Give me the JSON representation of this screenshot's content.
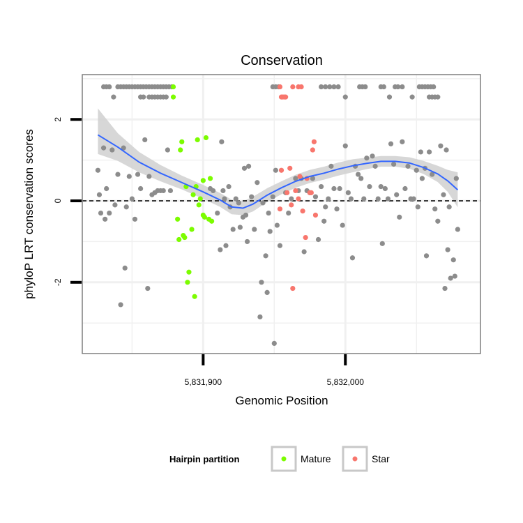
{
  "chart_data": {
    "type": "scatter",
    "title": "Conservation",
    "xlabel": "Genomic Position",
    "ylabel": "phyloP LRT conservation scores",
    "xlim": [
      5831815,
      5832095
    ],
    "ylim": [
      -3.75,
      3.1
    ],
    "x_ticks": [
      5831900,
      5832000
    ],
    "x_tick_labels": [
      "5,831,900",
      "5,832,000"
    ],
    "y_ticks": [
      -2,
      0,
      2
    ],
    "y_tick_labels": [
      "-2",
      "0",
      "2"
    ],
    "grid": true,
    "reference_line": {
      "y": 0,
      "style": "dashed"
    },
    "legend": {
      "title": "Hairpin partition",
      "position": "bottom",
      "entries": [
        {
          "label": "Mature",
          "color": "#7CFC00"
        },
        {
          "label": "Star",
          "color": "#F8766D"
        }
      ]
    },
    "colors": {
      "Other": "#8c8c8c",
      "Mature": "#7CFC00",
      "Star": "#F8766D",
      "smooth": "#3366FF",
      "band": "#d0d0d0"
    },
    "series": [
      {
        "name": "Other",
        "points": [
          [
            5831826,
            0.75
          ],
          [
            5831827,
            0.15
          ],
          [
            5831828,
            -0.3
          ],
          [
            5831830,
            1.3
          ],
          [
            5831831,
            -0.45
          ],
          [
            5831832,
            0.3
          ],
          [
            5831834,
            -0.3
          ],
          [
            5831836,
            1.25
          ],
          [
            5831838,
            -0.1
          ],
          [
            5831840,
            0.65
          ],
          [
            5831842,
            -2.55
          ],
          [
            5831844,
            1.3
          ],
          [
            5831845,
            -1.65
          ],
          [
            5831846,
            -0.15
          ],
          [
            5831848,
            0.6
          ],
          [
            5831850,
            0.05
          ],
          [
            5831852,
            -0.45
          ],
          [
            5831854,
            0.65
          ],
          [
            5831856,
            0.3
          ],
          [
            5831859,
            1.5
          ],
          [
            5831861,
            -2.15
          ],
          [
            5831862,
            0.6
          ],
          [
            5831864,
            0.15
          ],
          [
            5831866,
            0.2
          ],
          [
            5831868,
            0.25
          ],
          [
            5831870,
            0.25
          ],
          [
            5831872,
            0.25
          ],
          [
            5831875,
            1.25
          ],
          [
            5831877,
            0.25
          ],
          [
            5831905,
            0.3
          ],
          [
            5831907,
            0.25
          ],
          [
            5831910,
            -0.3
          ],
          [
            5831912,
            -1.2
          ],
          [
            5831913,
            1.45
          ],
          [
            5831914,
            0.25
          ],
          [
            5831915,
            0.05
          ],
          [
            5831916,
            -1.1
          ],
          [
            5831918,
            0.35
          ],
          [
            5831919,
            -0.15
          ],
          [
            5831921,
            -0.7
          ],
          [
            5831923,
            0.05
          ],
          [
            5831925,
            -0.05
          ],
          [
            5831926,
            -0.65
          ],
          [
            5831928,
            -0.4
          ],
          [
            5831929,
            0.8
          ],
          [
            5831930,
            -0.35
          ],
          [
            5831931,
            -1.0
          ],
          [
            5831932,
            0.85
          ],
          [
            5831934,
            0.1
          ],
          [
            5831936,
            -0.7
          ],
          [
            5831938,
            0.45
          ],
          [
            5831940,
            -2.85
          ],
          [
            5831941,
            -2.0
          ],
          [
            5831942,
            -0.05
          ],
          [
            5831944,
            -1.35
          ],
          [
            5831945,
            -2.25
          ],
          [
            5831946,
            -0.3
          ],
          [
            5831947,
            -0.75
          ],
          [
            5831949,
            0.1
          ],
          [
            5831950,
            -3.5
          ],
          [
            5831951,
            0.75
          ],
          [
            5831952,
            -0.6
          ],
          [
            5831954,
            -1.1
          ],
          [
            5831958,
            0.2
          ],
          [
            5831960,
            -0.3
          ],
          [
            5831962,
            0.05
          ],
          [
            5831965,
            0.55
          ],
          [
            5831967,
            0.25
          ],
          [
            5831969,
            0.55
          ],
          [
            5831971,
            -1.25
          ],
          [
            5831973,
            0.25
          ],
          [
            5831975,
            0.2
          ],
          [
            5831977,
            0.55
          ],
          [
            5831979,
            0.1
          ],
          [
            5831981,
            -0.95
          ],
          [
            5831983,
            0.35
          ],
          [
            5831985,
            -0.5
          ],
          [
            5831986,
            -0.15
          ],
          [
            5831988,
            0.05
          ],
          [
            5831990,
            0.85
          ],
          [
            5831992,
            0.3
          ],
          [
            5831994,
            -0.2
          ],
          [
            5831996,
            0.3
          ],
          [
            5831998,
            -0.6
          ],
          [
            5832000,
            1.35
          ],
          [
            5832002,
            0.2
          ],
          [
            5832004,
            0.05
          ],
          [
            5832005,
            -1.4
          ],
          [
            5832007,
            0.85
          ],
          [
            5832009,
            0.65
          ],
          [
            5832011,
            0.55
          ],
          [
            5832013,
            0.05
          ],
          [
            5832015,
            1.05
          ],
          [
            5832017,
            0.35
          ],
          [
            5832019,
            1.1
          ],
          [
            5832021,
            0.85
          ],
          [
            5832023,
            0.05
          ],
          [
            5832025,
            0.35
          ],
          [
            5832026,
            -1.05
          ],
          [
            5832028,
            0.3
          ],
          [
            5832030,
            0.05
          ],
          [
            5832032,
            1.4
          ],
          [
            5832034,
            0.9
          ],
          [
            5832036,
            0.15
          ],
          [
            5832038,
            -0.4
          ],
          [
            5832040,
            1.45
          ],
          [
            5832042,
            0.3
          ],
          [
            5832044,
            0.85
          ],
          [
            5832046,
            0.05
          ],
          [
            5832048,
            0.05
          ],
          [
            5832050,
            0.75
          ],
          [
            5832051,
            -0.15
          ],
          [
            5832053,
            1.2
          ],
          [
            5832054,
            0.55
          ],
          [
            5832056,
            0.8
          ],
          [
            5832057,
            -1.35
          ],
          [
            5832059,
            1.2
          ],
          [
            5832061,
            0.65
          ],
          [
            5832063,
            -0.2
          ],
          [
            5832065,
            -0.5
          ],
          [
            5832067,
            1.35
          ],
          [
            5832069,
            0.15
          ],
          [
            5832070,
            -2.15
          ],
          [
            5832071,
            1.25
          ],
          [
            5832072,
            -1.2
          ],
          [
            5832073,
            -0.15
          ],
          [
            5832074,
            -1.9
          ],
          [
            5832076,
            -1.45
          ],
          [
            5832077,
            -1.85
          ],
          [
            5832078,
            0.55
          ],
          [
            5832079,
            -0.7
          ]
        ]
      },
      {
        "name": "Other (capped at top)",
        "points": [
          [
            5831830,
            2.8
          ],
          [
            5831832,
            2.8
          ],
          [
            5831834,
            2.8
          ],
          [
            5831837,
            2.55
          ],
          [
            5831840,
            2.8
          ],
          [
            5831842,
            2.8
          ],
          [
            5831844,
            2.8
          ],
          [
            5831846,
            2.8
          ],
          [
            5831848,
            2.8
          ],
          [
            5831850,
            2.8
          ],
          [
            5831852,
            2.8
          ],
          [
            5831854,
            2.8
          ],
          [
            5831856,
            2.8
          ],
          [
            5831858,
            2.8
          ],
          [
            5831860,
            2.8
          ],
          [
            5831862,
            2.8
          ],
          [
            5831864,
            2.8
          ],
          [
            5831866,
            2.8
          ],
          [
            5831868,
            2.8
          ],
          [
            5831870,
            2.8
          ],
          [
            5831872,
            2.8
          ],
          [
            5831874,
            2.8
          ],
          [
            5831876,
            2.8
          ],
          [
            5831878,
            2.8
          ],
          [
            5831856,
            2.55
          ],
          [
            5831858,
            2.55
          ],
          [
            5831862,
            2.55
          ],
          [
            5831864,
            2.55
          ],
          [
            5831866,
            2.55
          ],
          [
            5831868,
            2.55
          ],
          [
            5831870,
            2.55
          ],
          [
            5831872,
            2.55
          ],
          [
            5831874,
            2.55
          ],
          [
            5831949,
            2.8
          ],
          [
            5831951,
            2.8
          ],
          [
            5831953,
            2.8
          ],
          [
            5831983,
            2.8
          ],
          [
            5831986,
            2.8
          ],
          [
            5831989,
            2.8
          ],
          [
            5831992,
            2.8
          ],
          [
            5831995,
            2.8
          ],
          [
            5832000,
            2.55
          ],
          [
            5832010,
            2.8
          ],
          [
            5832012,
            2.8
          ],
          [
            5832014,
            2.8
          ],
          [
            5832025,
            2.8
          ],
          [
            5832027,
            2.8
          ],
          [
            5832031,
            2.55
          ],
          [
            5832035,
            2.8
          ],
          [
            5832037,
            2.8
          ],
          [
            5832040,
            2.8
          ],
          [
            5832047,
            2.55
          ],
          [
            5832052,
            2.8
          ],
          [
            5832054,
            2.8
          ],
          [
            5832056,
            2.8
          ],
          [
            5832058,
            2.8
          ],
          [
            5832060,
            2.8
          ],
          [
            5832062,
            2.8
          ],
          [
            5832059,
            2.55
          ],
          [
            5832061,
            2.55
          ],
          [
            5832063,
            2.55
          ],
          [
            5832065,
            2.55
          ]
        ]
      },
      {
        "name": "Mature",
        "points": [
          [
            5831879,
            2.8
          ],
          [
            5831879,
            2.55
          ],
          [
            5831882,
            -0.45
          ],
          [
            5831883,
            -0.95
          ],
          [
            5831884,
            1.25
          ],
          [
            5831885,
            1.45
          ],
          [
            5831886,
            -0.85
          ],
          [
            5831887,
            -0.9
          ],
          [
            5831888,
            0.35
          ],
          [
            5831889,
            -2.0
          ],
          [
            5831890,
            -1.75
          ],
          [
            5831892,
            -0.7
          ],
          [
            5831893,
            0.15
          ],
          [
            5831894,
            -2.35
          ],
          [
            5831895,
            0.35
          ],
          [
            5831896,
            1.5
          ],
          [
            5831897,
            -0.1
          ],
          [
            5831898,
            0.05
          ],
          [
            5831900,
            0.5
          ],
          [
            5831900,
            -0.35
          ],
          [
            5831901,
            -0.4
          ],
          [
            5831902,
            1.55
          ],
          [
            5831904,
            -0.45
          ],
          [
            5831905,
            0.55
          ],
          [
            5831906,
            -0.5
          ]
        ]
      },
      {
        "name": "Star",
        "points": [
          [
            5831954,
            2.8
          ],
          [
            5831955,
            2.55
          ],
          [
            5831956,
            2.55
          ],
          [
            5831957,
            2.55
          ],
          [
            5831958,
            2.55
          ],
          [
            5831963,
            2.8
          ],
          [
            5831967,
            2.8
          ],
          [
            5831969,
            2.8
          ],
          [
            5831954,
            -0.2
          ],
          [
            5831955,
            0.75
          ],
          [
            5831959,
            0.2
          ],
          [
            5831961,
            0.8
          ],
          [
            5831962,
            -0.1
          ],
          [
            5831963,
            -2.15
          ],
          [
            5831965,
            0.25
          ],
          [
            5831967,
            0.05
          ],
          [
            5831968,
            0.6
          ],
          [
            5831970,
            -0.25
          ],
          [
            5831972,
            -0.9
          ],
          [
            5831973,
            0.55
          ],
          [
            5831975,
            0.2
          ],
          [
            5831976,
            0.2
          ],
          [
            5831977,
            1.25
          ],
          [
            5831978,
            1.45
          ],
          [
            5831979,
            -0.35
          ]
        ]
      }
    ],
    "smooth": {
      "x": [
        5831826,
        5831840,
        5831855,
        5831870,
        5831885,
        5831900,
        5831912,
        5831920,
        5831928,
        5831935,
        5831945,
        5831955,
        5831965,
        5831975,
        5831985,
        5831995,
        5832005,
        5832015,
        5832025,
        5832035,
        5832045,
        5832055,
        5832065,
        5832072,
        5832079
      ],
      "y": [
        1.62,
        1.32,
        0.95,
        0.68,
        0.45,
        0.22,
        0.02,
        -0.15,
        -0.18,
        -0.08,
        0.14,
        0.32,
        0.48,
        0.6,
        0.68,
        0.78,
        0.86,
        0.92,
        0.97,
        0.97,
        0.93,
        0.82,
        0.66,
        0.49,
        0.27
      ],
      "lower": [
        1.15,
        0.98,
        0.7,
        0.48,
        0.28,
        0.05,
        -0.15,
        -0.33,
        -0.35,
        -0.26,
        -0.03,
        0.16,
        0.32,
        0.44,
        0.52,
        0.62,
        0.7,
        0.78,
        0.84,
        0.84,
        0.79,
        0.66,
        0.46,
        0.22,
        -0.16
      ],
      "upper": [
        2.27,
        1.66,
        1.2,
        0.88,
        0.62,
        0.39,
        0.19,
        0.03,
        -0.01,
        0.1,
        0.31,
        0.48,
        0.64,
        0.76,
        0.84,
        0.94,
        1.02,
        1.06,
        1.1,
        1.1,
        1.07,
        0.98,
        0.86,
        0.76,
        0.7
      ]
    }
  }
}
